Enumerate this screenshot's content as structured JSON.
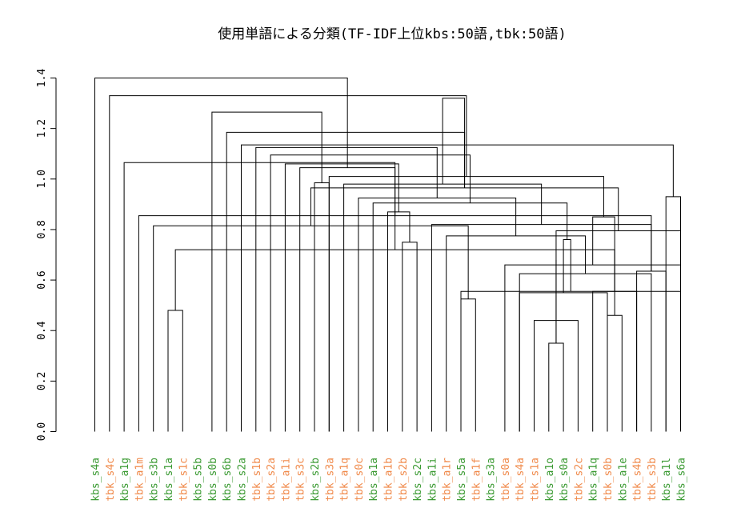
{
  "chart_data": {
    "type": "dendrogram",
    "title": "使用単語による分類(TF-IDF上位kbs:50語,tbk:50語)",
    "xlabel": "",
    "ylabel": "",
    "ylim": [
      0,
      1.4
    ],
    "yticks": [
      "0.0",
      "0.2",
      "0.4",
      "0.6",
      "0.8",
      "1.0",
      "1.2",
      "1.4"
    ],
    "grid": false,
    "colors": {
      "kbs": "#3a9a32",
      "tbk": "#f08a4b",
      "line": "#000000"
    },
    "leaves": [
      {
        "label": "kbs_s4a",
        "group": "kbs"
      },
      {
        "label": "tbk_s4c",
        "group": "tbk"
      },
      {
        "label": "kbs_a1g",
        "group": "kbs"
      },
      {
        "label": "tbk_a1m",
        "group": "tbk"
      },
      {
        "label": "kbs_s3b",
        "group": "kbs"
      },
      {
        "label": "kbs_s1a",
        "group": "kbs"
      },
      {
        "label": "tbk_s1c",
        "group": "tbk"
      },
      {
        "label": "kbs_s5b",
        "group": "kbs"
      },
      {
        "label": "kbs_s0b",
        "group": "kbs"
      },
      {
        "label": "kbs_s6b",
        "group": "kbs"
      },
      {
        "label": "kbs_s2a",
        "group": "kbs"
      },
      {
        "label": "tbk_s1b",
        "group": "tbk"
      },
      {
        "label": "tbk_s2a",
        "group": "tbk"
      },
      {
        "label": "tbk_a1i",
        "group": "tbk"
      },
      {
        "label": "tbk_s3c",
        "group": "tbk"
      },
      {
        "label": "kbs_s2b",
        "group": "kbs"
      },
      {
        "label": "tbk_s3a",
        "group": "tbk"
      },
      {
        "label": "tbk_a1q",
        "group": "tbk"
      },
      {
        "label": "tbk_s0c",
        "group": "tbk"
      },
      {
        "label": "kbs_a1a",
        "group": "kbs"
      },
      {
        "label": "tbk_a1b",
        "group": "tbk"
      },
      {
        "label": "tbk_s2b",
        "group": "tbk"
      },
      {
        "label": "kbs_s2c",
        "group": "kbs"
      },
      {
        "label": "kbs_a1i",
        "group": "kbs"
      },
      {
        "label": "tbk_a1r",
        "group": "tbk"
      },
      {
        "label": "kbs_s5a",
        "group": "kbs"
      },
      {
        "label": "tbk_a1f",
        "group": "tbk"
      },
      {
        "label": "kbs_s3a",
        "group": "kbs"
      },
      {
        "label": "tbk_s0a",
        "group": "tbk"
      },
      {
        "label": "tbk_s4a",
        "group": "tbk"
      },
      {
        "label": "tbk_s1a",
        "group": "tbk"
      },
      {
        "label": "kbs_a1o",
        "group": "kbs"
      },
      {
        "label": "kbs_s0a",
        "group": "kbs"
      },
      {
        "label": "tbk_s2c",
        "group": "tbk"
      },
      {
        "label": "kbs_a1q",
        "group": "kbs"
      },
      {
        "label": "tbk_s0b",
        "group": "tbk"
      },
      {
        "label": "kbs_a1e",
        "group": "kbs"
      },
      {
        "label": "tbk_s4b",
        "group": "tbk"
      },
      {
        "label": "tbk_s3b",
        "group": "tbk"
      },
      {
        "label": "kbs_a1l",
        "group": "kbs"
      },
      {
        "label": "kbs_s6a",
        "group": "kbs"
      }
    ],
    "merges": [
      {
        "a": 31,
        "b": 32,
        "height": 0.35
      },
      {
        "a": 30,
        "b": 33,
        "height": 0.44
      },
      {
        "a": 5,
        "b": 6,
        "height": 0.48
      },
      {
        "a": 35,
        "b": 36,
        "height": 0.46
      },
      {
        "a": 26,
        "b": 25,
        "height": 0.525
      },
      {
        "a": 29,
        "b": 35,
        "height": 0.55
      },
      {
        "a": 25,
        "b": 40,
        "height": 0.555
      },
      {
        "a": 34,
        "b": 37,
        "height": 0.555
      },
      {
        "a": 29,
        "b": 38,
        "height": 0.625
      },
      {
        "a": 37,
        "b": 39,
        "height": 0.635
      },
      {
        "a": 28,
        "b": 40,
        "height": 0.66
      },
      {
        "a": 42,
        "b": 41,
        "height": 0.68
      },
      {
        "a": 44,
        "b": 43,
        "height": 0.72
      },
      {
        "a": 21,
        "b": 22,
        "height": 0.75
      },
      {
        "a": 46,
        "b": 47,
        "height": 0.76
      },
      {
        "a": 24,
        "b": 49,
        "height": 0.775
      },
      {
        "a": 40,
        "b": 41,
        "height": 0.795
      },
      {
        "a": 4,
        "b": 45,
        "height": 0.815
      },
      {
        "a": 23,
        "b": 50,
        "height": 0.82
      },
      {
        "a": 3,
        "b": 50,
        "height": 0.855
      },
      {
        "a": 48,
        "b": 51,
        "height": 0.85
      },
      {
        "a": 20,
        "b": 54,
        "height": 0.87
      },
      {
        "a": 19,
        "b": 55,
        "height": 0.905
      },
      {
        "a": 18,
        "b": 56,
        "height": 0.925
      },
      {
        "a": 39,
        "b": 40,
        "height": 0.93
      },
      {
        "a": 57,
        "b": 58,
        "height": 0.965
      },
      {
        "a": 15,
        "b": 16,
        "height": 0.985
      },
      {
        "a": 17,
        "b": 59,
        "height": 0.98
      },
      {
        "a": 16,
        "b": 61,
        "height": 1.01
      },
      {
        "a": 14,
        "b": 60,
        "height": 1.045
      },
      {
        "a": 13,
        "b": 62,
        "height": 1.06
      },
      {
        "a": 2,
        "b": 53,
        "height": 1.065
      },
      {
        "a": 12,
        "b": 63,
        "height": 1.095
      },
      {
        "a": 11,
        "b": 64,
        "height": 1.125
      },
      {
        "a": 10,
        "b": 65,
        "height": 1.135
      },
      {
        "a": 9,
        "b": 66,
        "height": 1.185
      },
      {
        "a": 8,
        "b": 67,
        "height": 1.265
      },
      {
        "a": 66,
        "b": 68,
        "height": 1.32
      },
      {
        "a": 1,
        "b": 69,
        "height": 1.33
      },
      {
        "a": 0,
        "b": 70,
        "height": 1.4
      }
    ]
  }
}
